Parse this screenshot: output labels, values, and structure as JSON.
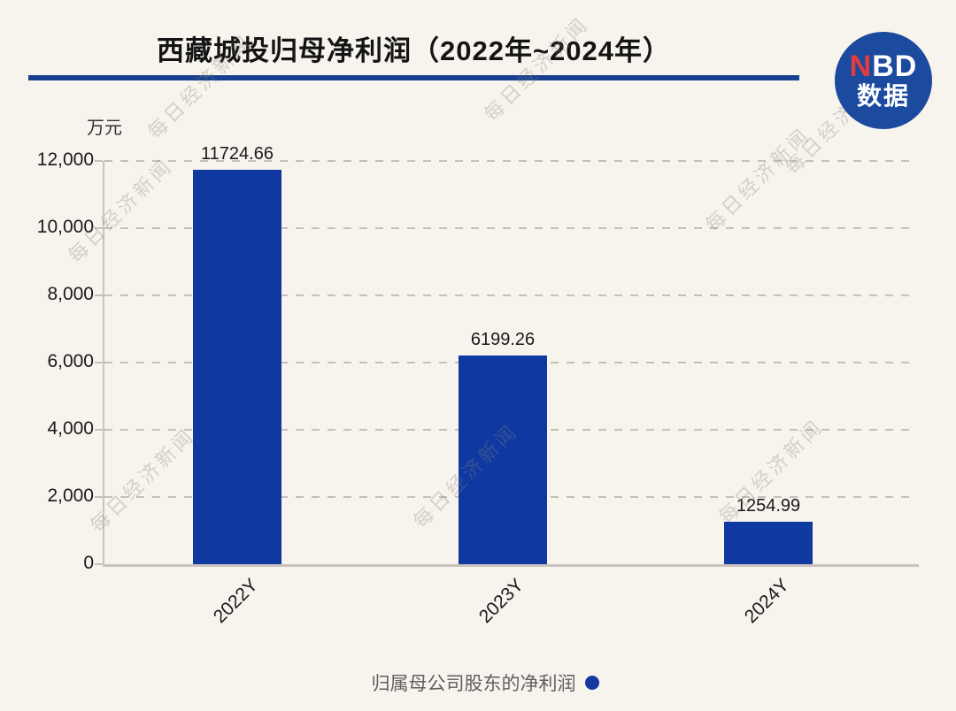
{
  "title": "西藏城投归母净利润（2022年~2024年）",
  "logo": {
    "nbd_red": "N",
    "nbd_rest": "BD",
    "subtitle": "数据"
  },
  "watermark_text": "每日经济新闻",
  "legend": {
    "label": "归属母公司股东的净利润"
  },
  "chart_data": {
    "type": "bar",
    "title": "西藏城投归母净利润（2022年~2024年）",
    "unit_label": "万元",
    "categories": [
      "2022Y",
      "2023Y",
      "2024Y"
    ],
    "series": [
      {
        "name": "归属母公司股东的净利润",
        "values": [
          11724.66,
          6199.26,
          1254.99
        ]
      }
    ],
    "value_labels": [
      "11724.66",
      "6199.26",
      "1254.99"
    ],
    "ylim": [
      0,
      12000
    ],
    "yticks": [
      0,
      2000,
      4000,
      6000,
      8000,
      10000,
      12000
    ],
    "ytick_labels": [
      "0",
      "2,000",
      "4,000",
      "6,000",
      "8,000",
      "10,000",
      "12,000"
    ],
    "grid": true,
    "gridline_style": "dashed",
    "legend_position": "bottom",
    "x_label_rotation": -45,
    "bar_color": "#0f38a1"
  },
  "colors": {
    "background": "#f7f3ed",
    "bar": "#0f38a1",
    "title_underline": "#17418f",
    "logo_circle": "#1c4a9e",
    "logo_n_red": "#e23d3d",
    "axis": "#c9c3bb",
    "gridline": "#c6c0b8",
    "text": "#1a1a1a",
    "legend_text": "#5f5f5f"
  }
}
